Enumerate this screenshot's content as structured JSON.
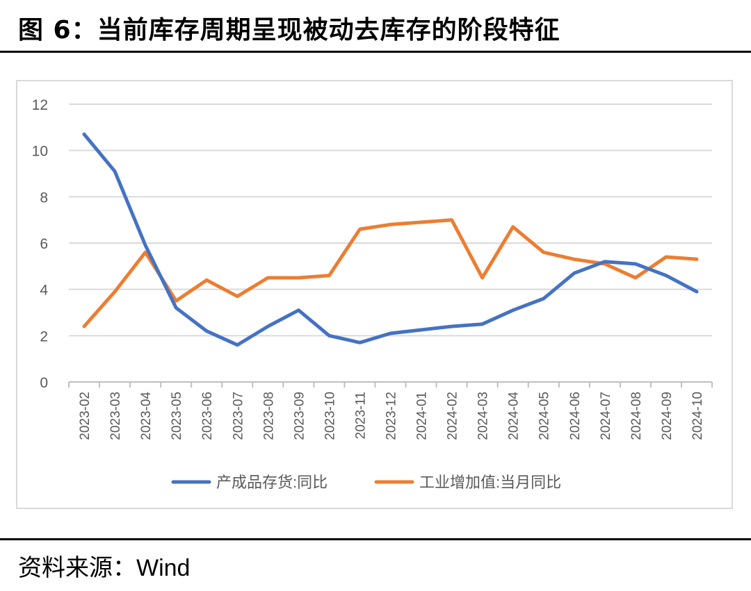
{
  "figure": {
    "title": "图 6：当前库存周期呈现被动去库存的阶段特征"
  },
  "source": {
    "label": "资料来源：",
    "name": "Wind"
  },
  "chart_data": {
    "type": "line",
    "categories": [
      "2023-02",
      "2023-03",
      "2023-04",
      "2023-05",
      "2023-06",
      "2023-07",
      "2023-08",
      "2023-09",
      "2023-10",
      "2023-11",
      "2023-12",
      "2024-01",
      "2024-02",
      "2024-03",
      "2024-04",
      "2024-05",
      "2024-06",
      "2024-07",
      "2024-08",
      "2024-09",
      "2024-10"
    ],
    "yticks": [
      "0",
      "2",
      "4",
      "6",
      "8",
      "10",
      "12"
    ],
    "ylim": [
      0,
      12
    ],
    "grid": true,
    "legend_position": "bottom",
    "series": [
      {
        "name": "产成品存货:同比",
        "color": "#4472c4",
        "values": [
          10.7,
          9.1,
          5.9,
          3.2,
          2.2,
          1.6,
          2.4,
          3.1,
          2.0,
          1.7,
          2.1,
          2.25,
          2.4,
          2.5,
          3.1,
          3.6,
          4.7,
          5.2,
          5.1,
          4.6,
          3.9
        ]
      },
      {
        "name": "工业增加值:当月同比",
        "color": "#ed7d31",
        "values": [
          2.4,
          3.9,
          5.6,
          3.5,
          4.4,
          3.7,
          4.5,
          4.5,
          4.6,
          6.6,
          6.8,
          6.9,
          7.0,
          4.5,
          6.7,
          5.6,
          5.3,
          5.1,
          4.5,
          5.4,
          5.3
        ]
      }
    ]
  }
}
